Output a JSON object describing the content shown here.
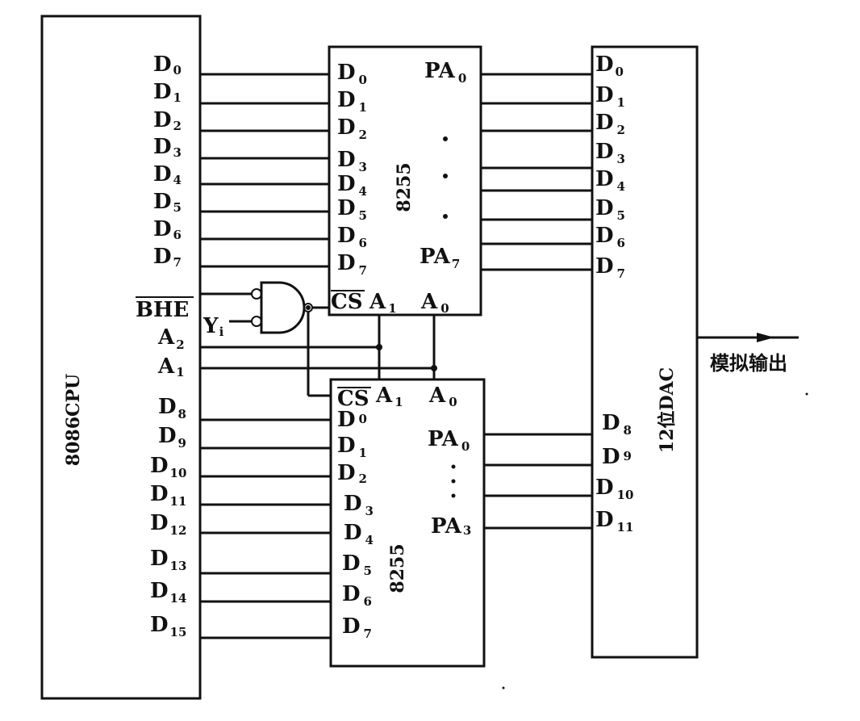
{
  "cpu": {
    "name": "8086CPU",
    "data_pins": [
      [
        "D",
        "0"
      ],
      [
        "D",
        "1"
      ],
      [
        "D",
        "2"
      ],
      [
        "D",
        "3"
      ],
      [
        "D",
        "4"
      ],
      [
        "D",
        "5"
      ],
      [
        "D",
        "6"
      ],
      [
        "D",
        "7"
      ],
      [
        "D",
        "8"
      ],
      [
        "D",
        "9"
      ],
      [
        "D",
        "10"
      ],
      [
        "D",
        "11"
      ],
      [
        "D",
        "12"
      ],
      [
        "D",
        "13"
      ],
      [
        "D",
        "14"
      ],
      [
        "D",
        "15"
      ]
    ],
    "bhe": "BHE",
    "a2": [
      "A",
      "2"
    ],
    "a1": [
      "A",
      "1"
    ]
  },
  "gate": {
    "y_input": [
      "Y",
      "i"
    ]
  },
  "upper_8255": {
    "name": "8255",
    "d_pins": [
      [
        "D",
        "0"
      ],
      [
        "D",
        "1"
      ],
      [
        "D",
        "2"
      ],
      [
        "D",
        "3"
      ],
      [
        "D",
        "4"
      ],
      [
        "D",
        "5"
      ],
      [
        "D",
        "6"
      ],
      [
        "D",
        "7"
      ]
    ],
    "pa_first": [
      "PA",
      "0"
    ],
    "pa_last": [
      "PA",
      "7"
    ],
    "cs": "CS",
    "a1": [
      "A",
      "1"
    ],
    "a0": [
      "A",
      "0"
    ]
  },
  "lower_8255": {
    "name": "8255",
    "d_pins": [
      [
        "D",
        "0"
      ],
      [
        "D",
        "1"
      ],
      [
        "D",
        "2"
      ],
      [
        "D",
        "3"
      ],
      [
        "D",
        "4"
      ],
      [
        "D",
        "5"
      ],
      [
        "D",
        "6"
      ],
      [
        "D",
        "7"
      ]
    ],
    "pa_first": [
      "PA",
      "0"
    ],
    "pa_last": [
      "PA",
      "3"
    ],
    "cs": "CS",
    "a1": [
      "A",
      "1"
    ],
    "a0": [
      "A",
      "0"
    ]
  },
  "dac": {
    "name": "12位DAC",
    "data_pins": [
      [
        "D",
        "0"
      ],
      [
        "D",
        "1"
      ],
      [
        "D",
        "2"
      ],
      [
        "D",
        "3"
      ],
      [
        "D",
        "4"
      ],
      [
        "D",
        "5"
      ],
      [
        "D",
        "6"
      ],
      [
        "D",
        "7"
      ],
      [
        "D",
        "8"
      ],
      [
        "D",
        "9"
      ],
      [
        "D",
        "10"
      ],
      [
        "D",
        "11"
      ]
    ]
  },
  "output_label": "模拟输出"
}
